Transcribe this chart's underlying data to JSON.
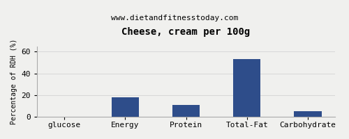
{
  "title": "Cheese, cream per 100g",
  "subtitle": "www.dietandfitnesstoday.com",
  "categories": [
    "glucose",
    "Energy",
    "Protein",
    "Total-Fat",
    "Carbohydrate"
  ],
  "values": [
    0,
    18,
    11,
    53,
    5
  ],
  "bar_color": "#2e4d8a",
  "ylabel": "Percentage of RDH (%)",
  "ylim": [
    0,
    65
  ],
  "yticks": [
    0,
    20,
    40,
    60
  ],
  "background_color": "#f0f0ee",
  "plot_bg_color": "#f0f0ee",
  "border_color": "#aaaaaa",
  "title_fontsize": 10,
  "subtitle_fontsize": 8,
  "axis_label_fontsize": 7,
  "tick_fontsize": 8
}
